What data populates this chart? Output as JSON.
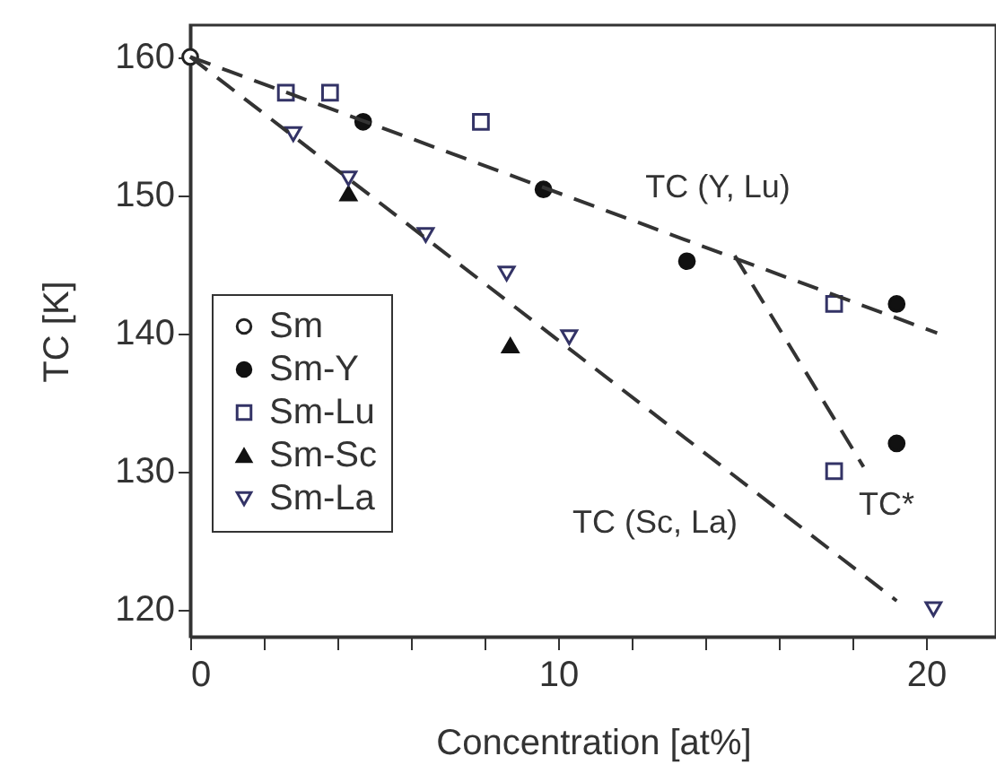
{
  "chart_data": {
    "type": "scatter",
    "xlabel": "Concentration [at%]",
    "ylabel": "TC [K]",
    "xlim": [
      0,
      21.9
    ],
    "ylim": [
      118,
      162.3
    ],
    "xticks": [
      0,
      {
        "value": 2,
        "label": null
      },
      {
        "value": 4,
        "label": null
      },
      {
        "value": 6,
        "label": null
      },
      {
        "value": 8,
        "label": null
      },
      10,
      {
        "value": 12,
        "label": null
      },
      {
        "value": 14,
        "label": null
      },
      {
        "value": 16,
        "label": null
      },
      {
        "value": 18,
        "label": null
      },
      20
    ],
    "yticks": [
      120,
      130,
      140,
      150,
      160
    ],
    "grid": false,
    "legend": "left",
    "series": [
      {
        "name": "Sm",
        "color": "#222222",
        "marker": "circle",
        "x": [
          0
        ],
        "values": [
          160
        ]
      },
      {
        "name": "Sm-Y",
        "color": "#111111",
        "marker": "circle",
        "x": [
          4.7,
          9.6,
          13.5,
          19.2,
          19.2
        ],
        "values": [
          155.3,
          150.4,
          145.2,
          142.1,
          132
        ]
      },
      {
        "name": "Sm-Lu",
        "color": "#333366",
        "marker": "square",
        "x": [
          2.6,
          3.8,
          7.9,
          17.5,
          17.5
        ],
        "values": [
          157.4,
          157.4,
          155.3,
          142.1,
          130
        ]
      },
      {
        "name": "Sm-Sc",
        "color": "#111111",
        "marker": "triangle-up",
        "x": [
          4.3,
          8.7
        ],
        "values": [
          150.1,
          139.1
        ]
      },
      {
        "name": "Sm-La",
        "color": "#333366",
        "marker": "triangle-down",
        "x": [
          2.8,
          4.3,
          6.4,
          8.6,
          10.3,
          20.2
        ],
        "values": [
          154.4,
          151.2,
          147.1,
          144.3,
          139.7,
          120
        ]
      },
      {
        "type": "line",
        "line_style": "dashed",
        "color": "#333333",
        "x": [
          0,
          20.3
        ],
        "values": [
          160,
          140
        ]
      },
      {
        "type": "line",
        "line_style": "dashed",
        "color": "#333333",
        "x": [
          0,
          19.2
        ],
        "values": [
          160,
          120.6
        ]
      },
      {
        "type": "line",
        "line_style": "dashed",
        "color": "#333333",
        "x": [
          14.8,
          18.3
        ],
        "values": [
          145.6,
          130.3
        ]
      }
    ],
    "annotations": [
      "TC (Y, Lu)",
      "TC (Sc, La)",
      "TC*"
    ]
  }
}
